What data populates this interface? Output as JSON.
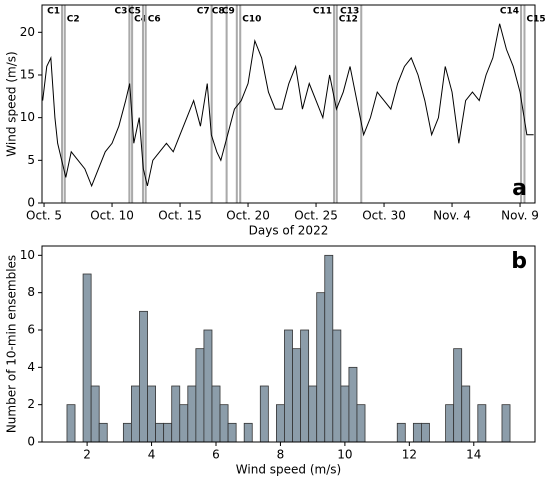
{
  "chart_data": [
    {
      "type": "line",
      "ylabel": "Wind speed (m/s)",
      "xlabel": "Days of 2022",
      "panel_label": "a",
      "x": [
        4.9,
        5.2,
        5.5,
        5.8,
        6.0,
        6.3,
        6.6,
        7,
        7.5,
        8,
        8.5,
        9,
        9.5,
        10,
        10.5,
        11,
        11.3,
        11.6,
        12,
        12.3,
        12.6,
        13,
        13.5,
        14,
        14.5,
        15,
        15.5,
        16,
        16.5,
        17,
        17.3,
        17.7,
        18,
        18.5,
        19,
        19.5,
        20,
        20.5,
        21,
        21.5,
        22,
        22.5,
        23,
        23.5,
        24,
        24.5,
        25,
        25.5,
        26,
        26.5,
        27,
        27.5,
        28,
        28.5,
        29,
        29.5,
        30,
        30.5,
        31,
        31.5,
        32,
        32.5,
        33,
        33.5,
        34,
        34.5,
        35,
        35.5,
        36,
        36.5,
        37,
        37.5,
        38,
        38.5,
        39,
        39.5,
        40,
        40.5,
        41
      ],
      "values": [
        12,
        16,
        17,
        10,
        7,
        5,
        3,
        6,
        5,
        4,
        2,
        4,
        6,
        7,
        9,
        12,
        14,
        7,
        10,
        4,
        2,
        5,
        6,
        7,
        6,
        8,
        10,
        12,
        9,
        14,
        8,
        6,
        5,
        8,
        11,
        12,
        14,
        19,
        17,
        13,
        11,
        11,
        14,
        16,
        11,
        14,
        12,
        10,
        15,
        11,
        13,
        16,
        12,
        8,
        10,
        13,
        12,
        11,
        14,
        16,
        17,
        15,
        12,
        8,
        10,
        16,
        13,
        7,
        12,
        13,
        12,
        15,
        17,
        21,
        18,
        16,
        13,
        8,
        8
      ],
      "color": "#000000",
      "xlim": [
        4.85,
        41.1
      ],
      "xticks": [
        {
          "value": 5,
          "label": "Oct. 5"
        },
        {
          "value": 10,
          "label": "Oct. 10"
        },
        {
          "value": 15,
          "label": "Oct. 15"
        },
        {
          "value": 20,
          "label": "Oct. 20"
        },
        {
          "value": 25,
          "label": "Oct. 25"
        },
        {
          "value": 30,
          "label": "Oct. 30"
        },
        {
          "value": 35,
          "label": "Nov. 4"
        },
        {
          "value": 40,
          "label": "Nov. 9"
        }
      ],
      "ylim": [
        0,
        23.2
      ],
      "yticks": [
        0,
        5,
        10,
        15,
        20
      ],
      "band_color": "#aaaaaa",
      "bands": [
        {
          "label": "C1",
          "x": [
            6.25,
            6.4
          ]
        },
        {
          "label": "C2",
          "x": [
            6.45,
            6.6
          ]
        },
        {
          "label": "C3",
          "x": [
            11.2,
            11.35
          ]
        },
        {
          "label": "C4",
          "x": [
            11.4,
            11.55
          ]
        },
        {
          "label": "C5",
          "x": [
            12.2,
            12.35
          ]
        },
        {
          "label": "C6",
          "x": [
            12.4,
            12.55
          ]
        },
        {
          "label": "C7",
          "x": [
            17.25,
            17.4
          ]
        },
        {
          "label": "C8",
          "x": [
            18.35,
            18.5
          ]
        },
        {
          "label": "C9",
          "x": [
            19.1,
            19.25
          ]
        },
        {
          "label": "C10",
          "x": [
            19.35,
            19.5
          ]
        },
        {
          "label": "C11",
          "x": [
            26.25,
            26.4
          ]
        },
        {
          "label": "C12",
          "x": [
            26.45,
            26.6
          ]
        },
        {
          "label": "C13",
          "x": [
            28.25,
            28.4
          ]
        },
        {
          "label": "C14",
          "x": [
            40.0,
            40.15
          ]
        },
        {
          "label": "C15",
          "x": [
            40.25,
            40.4
          ]
        }
      ]
    },
    {
      "type": "histogram",
      "ylabel": "Number of 10-min ensembles",
      "xlabel": "Wind speed (m/s)",
      "panel_label": "b",
      "bins": [
        1.375,
        1.625,
        1.875,
        2.125,
        2.375,
        2.625,
        2.875,
        3.125,
        3.375,
        3.625,
        3.875,
        4.125,
        4.375,
        4.625,
        4.875,
        5.125,
        5.375,
        5.625,
        5.875,
        6.125,
        6.375,
        6.625,
        6.875,
        7.125,
        7.375,
        7.625,
        7.875,
        8.125,
        8.375,
        8.625,
        8.875,
        9.125,
        9.375,
        9.625,
        9.875,
        10.125,
        10.375,
        10.625,
        10.875,
        11.125,
        11.375,
        11.625,
        11.875,
        12.125,
        12.375,
        12.625,
        12.875,
        13.125,
        13.375,
        13.625,
        13.875,
        14.125,
        14.375,
        14.625,
        14.875,
        15.125
      ],
      "values": [
        2,
        0,
        9,
        3,
        1,
        0,
        0,
        1,
        3,
        7,
        3,
        1,
        1,
        3,
        2,
        3,
        5,
        6,
        3,
        2,
        1,
        0,
        1,
        0,
        3,
        0,
        2,
        6,
        5,
        6,
        3,
        8,
        10,
        6,
        3,
        4,
        2,
        0,
        0,
        0,
        0,
        1,
        0,
        1,
        1,
        0,
        0,
        2,
        5,
        3,
        0,
        2,
        0,
        0,
        2
      ],
      "color": "#8c9daa",
      "edgecolor": "#333333",
      "xlim": [
        0.6,
        15.9
      ],
      "xticks": [
        2,
        4,
        6,
        8,
        10,
        12,
        14
      ],
      "ylim": [
        0,
        10.5
      ],
      "yticks": [
        0,
        2,
        4,
        6,
        8,
        10
      ]
    }
  ]
}
